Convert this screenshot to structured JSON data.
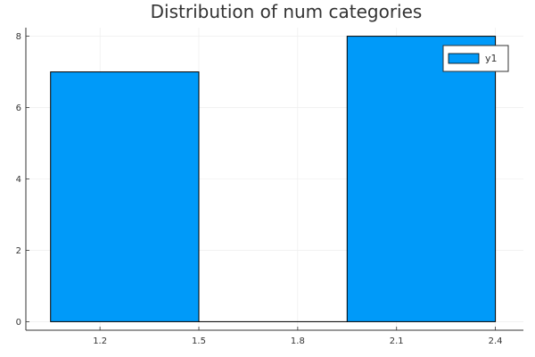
{
  "chart_data": {
    "type": "bar",
    "title": "Distribution of num categories",
    "xlabel": "",
    "ylabel": "",
    "bars": [
      {
        "x0": 1.05,
        "x1": 1.5,
        "value": 7
      },
      {
        "x0": 1.5,
        "x1": 1.95,
        "value": 0
      },
      {
        "x0": 1.95,
        "x1": 2.4,
        "value": 8
      }
    ],
    "xlim": [
      0.975,
      2.485
    ],
    "ylim": [
      -0.24,
      8.24
    ],
    "x_ticks": [
      {
        "value": 1.2,
        "label": "1.2"
      },
      {
        "value": 1.5,
        "label": "1.5"
      },
      {
        "value": 1.8,
        "label": "1.8"
      },
      {
        "value": 2.1,
        "label": "2.1"
      },
      {
        "value": 2.4,
        "label": "2.4"
      }
    ],
    "y_ticks": [
      {
        "value": 0,
        "label": "0"
      },
      {
        "value": 2,
        "label": "2"
      },
      {
        "value": 4,
        "label": "4"
      },
      {
        "value": 6,
        "label": "6"
      },
      {
        "value": 8,
        "label": "8"
      }
    ],
    "grid": true,
    "legend": {
      "position": "top-right",
      "entries": [
        {
          "label": "y1",
          "color": "#009AF9"
        }
      ]
    },
    "colors": {
      "bar_fill": "#009AF9",
      "bar_stroke": "#000000",
      "grid": "#ebebeb",
      "axis": "#333333"
    }
  }
}
